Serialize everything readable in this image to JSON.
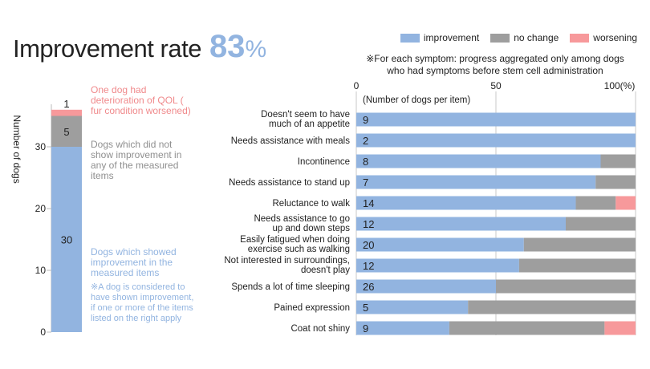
{
  "header": {
    "title": "Improvement rate",
    "rate_value": "83",
    "rate_unit": "%",
    "note_line1": "※For each symptom: progress aggregated only among dogs",
    "note_line2": "who had symptoms before stem cell administration"
  },
  "legend": [
    {
      "label": "improvement",
      "color": "#92b4e0"
    },
    {
      "label": "no change",
      "color": "#9e9e9e"
    },
    {
      "label": "worsening",
      "color": "#f7999b"
    }
  ],
  "chart_data": [
    {
      "type": "bar",
      "stacked": true,
      "ylabel": "Number of dogs",
      "ylim": [
        0,
        36
      ],
      "yticks": [
        "0",
        "10",
        "20",
        "30"
      ],
      "series": [
        {
          "name": "improvement",
          "value": 30,
          "label": "30",
          "color": "#92b4e0"
        },
        {
          "name": "no change",
          "value": 5,
          "label": "5",
          "color": "#9e9e9e"
        },
        {
          "name": "worsening",
          "value": 1,
          "label": "1",
          "color": "#f7999b"
        }
      ],
      "annotations": {
        "worsening": "One dog had deterioration of QOL ( fur condition worsened)",
        "no_change": "Dogs which did not show improvement in any of the measured items",
        "improvement": "Dogs which showed improvement in the measured items",
        "footnote": "※A dog is considered to have shown improvement, if one or more of the items listed on the right apply"
      }
    },
    {
      "type": "bar",
      "orientation": "horizontal",
      "stacked": true,
      "xlim": [
        0,
        100
      ],
      "xticks": [
        "0",
        "50",
        "100(%)"
      ],
      "count_header": "(Number of dogs per item)",
      "categories": [
        "Doesn't seem to have much of an appetite",
        "Needs assistance with meals",
        "Incontinence",
        "Needs assistance to stand up",
        "Reluctance to walk",
        "Needs assistance to go up and down steps",
        "Easily fatigued when doing exercise such as walking",
        "Not interested in surroundings, doesn't play",
        "Spends a lot of time sleeping",
        "Pained expression",
        "Coat not shiny"
      ],
      "counts": [
        9,
        2,
        8,
        7,
        14,
        12,
        20,
        12,
        26,
        5,
        9
      ],
      "series": [
        {
          "name": "improvement",
          "values": [
            100,
            100,
            87.5,
            85.7,
            78.6,
            75,
            60,
            58.3,
            50,
            40,
            33.3
          ]
        },
        {
          "name": "no change",
          "values": [
            0,
            0,
            12.5,
            14.3,
            14.3,
            25,
            40,
            41.7,
            50,
            60,
            55.6
          ]
        },
        {
          "name": "worsening",
          "values": [
            0,
            0,
            0,
            0,
            7.1,
            0,
            0,
            0,
            0,
            0,
            11.1
          ]
        }
      ]
    }
  ]
}
